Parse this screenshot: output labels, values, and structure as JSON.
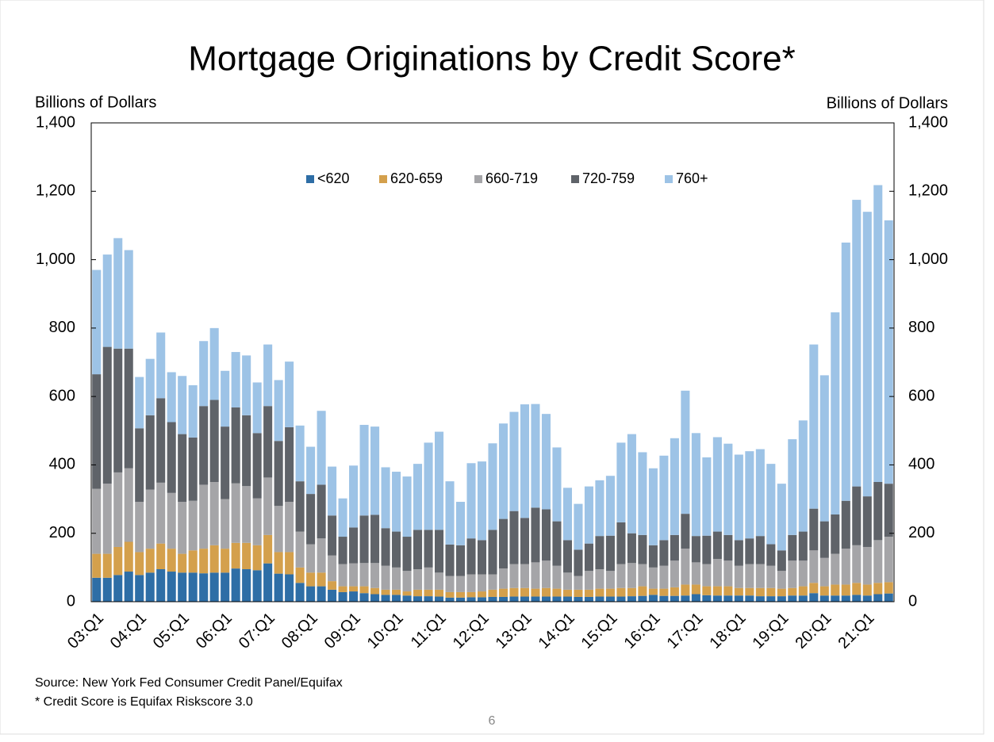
{
  "chart_data": {
    "type": "bar",
    "stacked": true,
    "title": "Mortgage Originations by Credit Score*",
    "ylabel": "Billions of Dollars",
    "y2label": "Billions of Dollars",
    "notes": [
      "Source: New York Fed Consumer Credit Panel/Equifax",
      "* Credit Score is Equifax Riskscore 3.0"
    ],
    "page_number": "6",
    "legend": "top",
    "grid": false,
    "categories": [
      "03:Q1",
      null,
      null,
      null,
      "04:Q1",
      null,
      null,
      null,
      "05:Q1",
      null,
      null,
      null,
      "06:Q1",
      null,
      null,
      null,
      "07:Q1",
      null,
      null,
      null,
      "08:Q1",
      null,
      null,
      null,
      "09:Q1",
      null,
      null,
      null,
      "10:Q1",
      null,
      null,
      null,
      "11:Q1",
      null,
      null,
      null,
      "12:Q1",
      null,
      null,
      null,
      "13:Q1",
      null,
      null,
      null,
      "14:Q1",
      null,
      null,
      null,
      "15:Q1",
      null,
      null,
      null,
      "16:Q1",
      null,
      null,
      null,
      "17:Q1",
      null,
      null,
      null,
      "18:Q1",
      null,
      null,
      null,
      "19:Q1",
      null,
      null,
      null,
      "20:Q1",
      null,
      null,
      null,
      "21:Q1",
      null,
      null
    ],
    "series": [
      {
        "name": "<620",
        "color": "#2e6ea6",
        "values": [
          70,
          70,
          78,
          88,
          78,
          85,
          95,
          88,
          85,
          85,
          83,
          85,
          85,
          97,
          95,
          92,
          112,
          82,
          80,
          55,
          45,
          45,
          35,
          28,
          30,
          25,
          22,
          20,
          20,
          18,
          16,
          16,
          15,
          12,
          12,
          13,
          13,
          14,
          14,
          15,
          15,
          15,
          15,
          15,
          15,
          14,
          14,
          15,
          15,
          15,
          16,
          17,
          20,
          17,
          17,
          18,
          22,
          19,
          18,
          18,
          18,
          18,
          16,
          16,
          16,
          18,
          18,
          25,
          18,
          18,
          18,
          20,
          18,
          22,
          24
        ]
      },
      {
        "name": "620-659",
        "color": "#d4a04c",
        "values": [
          70,
          70,
          82,
          87,
          67,
          70,
          75,
          67,
          55,
          65,
          72,
          80,
          70,
          75,
          77,
          73,
          83,
          63,
          65,
          45,
          40,
          40,
          25,
          17,
          15,
          20,
          18,
          15,
          15,
          12,
          19,
          19,
          20,
          16,
          16,
          15,
          17,
          21,
          24,
          25,
          25,
          23,
          25,
          23,
          20,
          21,
          21,
          23,
          23,
          25,
          24,
          28,
          18,
          21,
          25,
          32,
          28,
          26,
          27,
          27,
          22,
          22,
          24,
          24,
          22,
          22,
          27,
          30,
          27,
          32,
          32,
          35,
          32,
          33,
          33
        ]
      },
      {
        "name": "660-719",
        "color": "#a5a5a8",
        "values": [
          190,
          205,
          218,
          215,
          147,
          173,
          178,
          163,
          152,
          145,
          187,
          185,
          145,
          174,
          166,
          137,
          168,
          135,
          147,
          105,
          83,
          100,
          75,
          65,
          67,
          68,
          73,
          70,
          65,
          60,
          60,
          65,
          50,
          47,
          47,
          52,
          50,
          45,
          59,
          70,
          70,
          77,
          80,
          67,
          50,
          40,
          55,
          57,
          52,
          70,
          73,
          65,
          62,
          67,
          78,
          105,
          65,
          65,
          80,
          75,
          65,
          70,
          70,
          65,
          52,
          80,
          75,
          95,
          83,
          90,
          105,
          110,
          110,
          125,
          133
        ]
      },
      {
        "name": "720-759",
        "color": "#5f6369",
        "values": [
          335,
          400,
          362,
          350,
          215,
          217,
          247,
          207,
          198,
          185,
          230,
          240,
          212,
          222,
          207,
          191,
          209,
          190,
          218,
          147,
          147,
          157,
          117,
          80,
          105,
          139,
          141,
          110,
          105,
          100,
          115,
          110,
          125,
          92,
          90,
          105,
          100,
          130,
          145,
          155,
          135,
          160,
          150,
          130,
          95,
          77,
          80,
          97,
          103,
          122,
          87,
          85,
          65,
          75,
          75,
          102,
          77,
          83,
          80,
          75,
          75,
          75,
          82,
          63,
          60,
          75,
          85,
          122,
          107,
          115,
          140,
          172,
          148,
          170,
          155
        ]
      },
      {
        "name": "760+",
        "color": "#9dc3e6",
        "values": [
          305,
          270,
          323,
          288,
          150,
          165,
          192,
          146,
          170,
          153,
          190,
          210,
          163,
          162,
          175,
          148,
          180,
          178,
          192,
          163,
          138,
          216,
          143,
          112,
          181,
          265,
          258,
          178,
          175,
          176,
          193,
          255,
          287,
          185,
          127,
          220,
          230,
          253,
          279,
          290,
          332,
          303,
          279,
          216,
          153,
          134,
          167,
          163,
          175,
          233,
          290,
          242,
          225,
          247,
          283,
          360,
          301,
          229,
          276,
          267,
          250,
          255,
          254,
          235,
          195,
          280,
          325,
          480,
          427,
          591,
          755,
          838,
          832,
          868,
          770
        ]
      }
    ],
    "ylim": [
      0,
      1400
    ],
    "yticks": [
      0,
      200,
      400,
      600,
      800,
      {
        "value": 1000,
        "label": "1,000"
      },
      {
        "value": 1200,
        "label": "1,200"
      },
      {
        "value": 1400,
        "label": "1,400"
      }
    ],
    "y2lim": [
      0,
      1400
    ],
    "y2ticks": [
      0,
      200,
      400,
      600,
      800,
      {
        "value": 1000,
        "label": "1,000"
      },
      {
        "value": 1200,
        "label": "1,200"
      },
      {
        "value": 1400,
        "label": "1,400"
      }
    ]
  }
}
